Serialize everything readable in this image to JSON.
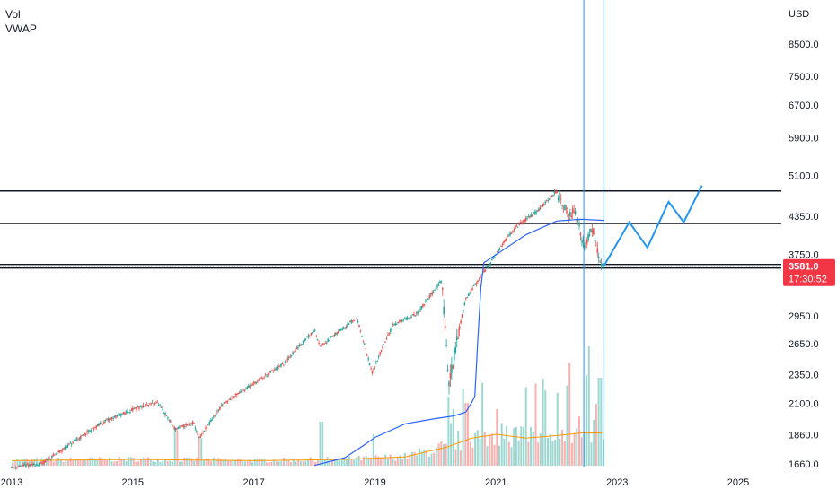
{
  "legend": {
    "vol_label": "Vol",
    "vwap_label": "VWAP"
  },
  "price_scale": {
    "currency": "USD"
  },
  "last_price": {
    "value": "3581.0",
    "countdown": "17:30:52",
    "color": "#f23645"
  },
  "colors": {
    "up": "#26a69a",
    "down": "#ef5350",
    "vwap": "#2962ff",
    "projection": "#2196f3",
    "vertical_lines": "#2196f3",
    "volume_ma": "#ff9800",
    "horizontal_lines": "#131722",
    "axis_text": "#131722"
  },
  "chart_data": {
    "type": "candlestick",
    "y_scale": "log",
    "ylim": [
      1600,
      10000
    ],
    "xlim": [
      2013.0,
      2026.2
    ],
    "y_ticks": [
      8500.0,
      7500.0,
      6700.0,
      5900.0,
      5100.0,
      4350.0,
      3750.0,
      2950.0,
      2650.0,
      2350.0,
      2100.0,
      1860.0,
      1660.0
    ],
    "y_tick_labels": [
      "8500.0",
      "7500.0",
      "6700.0",
      "5900.0",
      "5100.0",
      "4350.0",
      "3750.0",
      "2950.0",
      "2650.0",
      "2350.0",
      "2100.0",
      "1860.0",
      "1660.0"
    ],
    "x_ticks": [
      2013,
      2015,
      2017,
      2019,
      2021,
      2023,
      2025
    ],
    "x_tick_labels": [
      "2013",
      "2015",
      "2017",
      "2019",
      "2021",
      "2023",
      "2025"
    ],
    "price_path": [
      [
        2013.0,
        1640
      ],
      [
        2013.5,
        1660
      ],
      [
        2014.0,
        1800
      ],
      [
        2014.5,
        1950
      ],
      [
        2015.0,
        2050
      ],
      [
        2015.4,
        2110
      ],
      [
        2015.7,
        1900
      ],
      [
        2016.0,
        1950
      ],
      [
        2016.1,
        1830
      ],
      [
        2016.5,
        2100
      ],
      [
        2017.0,
        2270
      ],
      [
        2017.5,
        2450
      ],
      [
        2018.0,
        2800
      ],
      [
        2018.1,
        2620
      ],
      [
        2018.7,
        2930
      ],
      [
        2018.95,
        2360
      ],
      [
        2019.3,
        2850
      ],
      [
        2019.7,
        2980
      ],
      [
        2020.1,
        3380
      ],
      [
        2020.22,
        2240
      ],
      [
        2020.5,
        3150
      ],
      [
        2020.9,
        3620
      ],
      [
        2021.3,
        4150
      ],
      [
        2021.7,
        4450
      ],
      [
        2021.98,
        4790
      ],
      [
        2022.2,
        4350
      ],
      [
        2022.3,
        4450
      ],
      [
        2022.45,
        3850
      ],
      [
        2022.6,
        4150
      ],
      [
        2022.7,
        3720
      ],
      [
        2022.78,
        3581
      ]
    ],
    "vwap_path": [
      [
        2018.0,
        1650
      ],
      [
        2018.5,
        1700
      ],
      [
        2018.8,
        1780
      ],
      [
        2019.0,
        1840
      ],
      [
        2019.5,
        1940
      ],
      [
        2020.0,
        1980
      ],
      [
        2020.3,
        2000
      ],
      [
        2020.5,
        2030
      ],
      [
        2020.6,
        2110
      ],
      [
        2020.65,
        2160
      ],
      [
        2020.7,
        2700
      ],
      [
        2020.75,
        3300
      ],
      [
        2020.8,
        3630
      ],
      [
        2021.5,
        4050
      ],
      [
        2022.0,
        4270
      ],
      [
        2022.4,
        4300
      ],
      [
        2022.78,
        4280
      ]
    ],
    "volume_ma_path": [
      [
        2013.0,
        0.04
      ],
      [
        2015.0,
        0.05
      ],
      [
        2017.0,
        0.04
      ],
      [
        2018.5,
        0.05
      ],
      [
        2019.5,
        0.07
      ],
      [
        2020.2,
        0.15
      ],
      [
        2020.6,
        0.22
      ],
      [
        2021.0,
        0.25
      ],
      [
        2021.5,
        0.22
      ],
      [
        2022.0,
        0.24
      ],
      [
        2022.4,
        0.26
      ],
      [
        2022.78,
        0.26
      ]
    ],
    "volume_spikes": [
      [
        2015.7,
        0.28
      ],
      [
        2016.1,
        0.22
      ],
      [
        2018.1,
        0.35
      ],
      [
        2018.95,
        0.25
      ],
      [
        2020.2,
        0.55
      ],
      [
        2020.5,
        0.5
      ],
      [
        2021.0,
        0.45
      ],
      [
        2021.8,
        0.6
      ],
      [
        2022.2,
        0.82
      ],
      [
        2022.5,
        0.72
      ],
      [
        2022.7,
        0.7
      ]
    ],
    "horizontal_levels": [
      4800,
      4230,
      3581
    ],
    "vertical_markers": [
      2022.45,
      2022.78
    ],
    "projection_path": [
      [
        2022.78,
        3581
      ],
      [
        2023.2,
        4250
      ],
      [
        2023.5,
        3850
      ],
      [
        2023.85,
        4600
      ],
      [
        2024.1,
        4250
      ],
      [
        2024.4,
        4900
      ]
    ]
  }
}
